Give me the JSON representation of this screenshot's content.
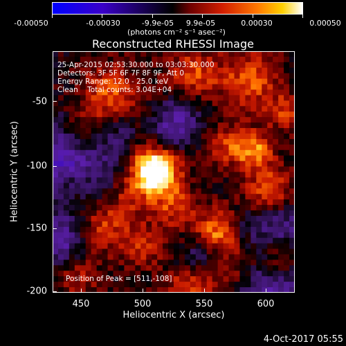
{
  "colorbar": {
    "ticks": [
      "-0.00050",
      "-0.00030",
      "-9.9e-05",
      "9.9e-05",
      "0.00030",
      "0.00050"
    ],
    "unit": "(photons cm⁻² s⁻¹ asec⁻²)"
  },
  "title": "Reconstructed RHESSI Image",
  "annotations": {
    "line1": "25-Apr-2015 02:53:30.000 to 03:03:30.000",
    "line2": "Detectors: 3F 5F 6F 7F 8F 9F, Att 0",
    "line3": "Energy Range: 12.0 - 25.0 keV",
    "line4": "Clean    Total counts: 3.04E+04",
    "peak": "Position of Peak = [511,-108]"
  },
  "axes": {
    "xlabel": "Heliocentric X (arcsec)",
    "ylabel": "Heliocentric Y (arcsec)",
    "xticks": [
      "450",
      "500",
      "550",
      "600"
    ],
    "yticks": [
      "-50",
      "-100",
      "-150",
      "-200"
    ]
  },
  "date": "4-Oct-2017 05:55",
  "chart_data": {
    "type": "heatmap",
    "title": "Reconstructed RHESSI Image",
    "xlabel": "Heliocentric X (arcsec)",
    "ylabel": "Heliocentric Y (arcsec)",
    "xlim": [
      430,
      620
    ],
    "ylim": [
      -202,
      -12
    ],
    "zlim": [
      -0.0005,
      0.0005
    ],
    "peak": [
      511,
      -108
    ],
    "colormap": [
      "#0000ff",
      "#3a00c8",
      "#000000",
      "#6e0000",
      "#d21e00",
      "#ff7800",
      "#ffd000",
      "#ffffff"
    ]
  }
}
